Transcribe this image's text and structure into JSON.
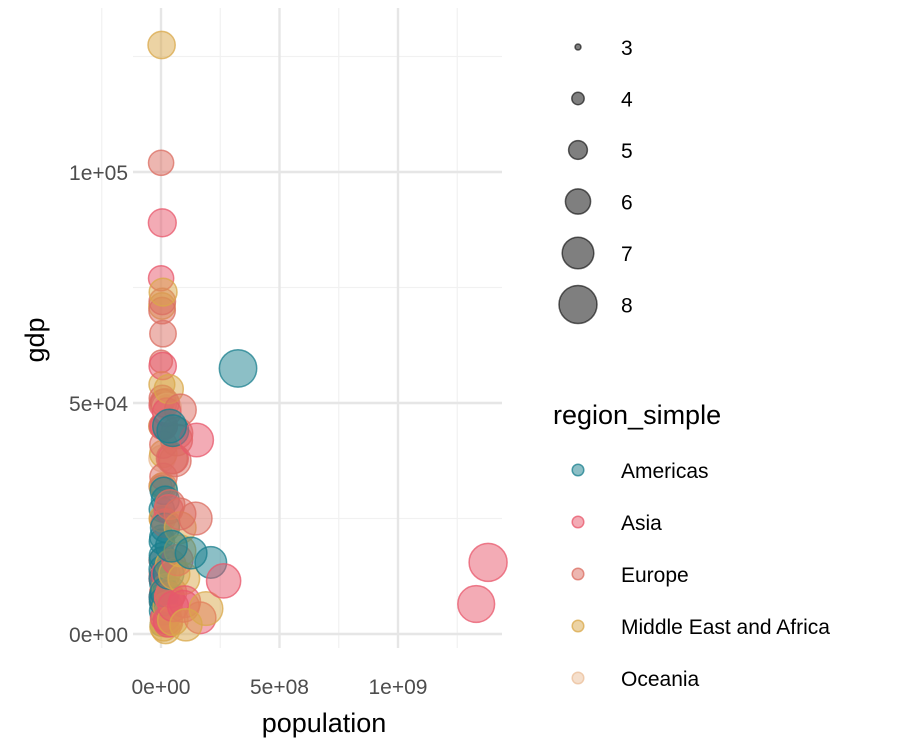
{
  "chart_data": {
    "type": "scatter",
    "xlabel": "population",
    "ylabel": "gdp",
    "xlim": [
      -30000000,
      1440000000
    ],
    "ylim": [
      -5000000,
      1298000000
    ],
    "ylim_note": "",
    "x_ticks": [
      {
        "value": 0,
        "label": "0e+00"
      },
      {
        "value": 500000000,
        "label": "5e+08"
      },
      {
        "value": 1000000000,
        "label": "1e+09"
      }
    ],
    "y_ticks": [
      {
        "value": 0,
        "label": "0e+00"
      },
      {
        "value": 50000,
        "label": "5e+04"
      },
      {
        "value": 100000,
        "label": "1e+05"
      }
    ],
    "y_range": [
      -3000,
      129500
    ],
    "grid": true,
    "size_legend": {
      "title": "",
      "entries": [
        {
          "label": "3",
          "size": 3
        },
        {
          "label": "4",
          "size": 4
        },
        {
          "label": "5",
          "size": 5
        },
        {
          "label": "6",
          "size": 6
        },
        {
          "label": "7",
          "size": 7
        },
        {
          "label": "8",
          "size": 8
        }
      ]
    },
    "color_legend": {
      "title": "region_simple",
      "entries": [
        {
          "label": "Americas",
          "color": "#1a7f8e"
        },
        {
          "label": "Asia",
          "color": "#e8576b"
        },
        {
          "label": "Europe",
          "color": "#db6e62"
        },
        {
          "label": "Middle East and Africa",
          "color": "#d9a84a"
        },
        {
          "label": "Oceania",
          "color": "#ebbf9a"
        }
      ]
    },
    "series": [
      {
        "name": "Americas",
        "points": [
          [
            325000000,
            57500,
            7.9
          ],
          [
            210000000,
            15500,
            7.0
          ],
          [
            127000000,
            17500,
            7.0
          ],
          [
            50000000,
            44000,
            7.0
          ],
          [
            36000000,
            45000,
            7.3
          ],
          [
            44000000,
            19000,
            7.0
          ],
          [
            32000000,
            13000,
            6.8
          ],
          [
            17000000,
            23000,
            6.6
          ],
          [
            11000000,
            7000,
            6.5
          ],
          [
            9000000,
            8000,
            6.4
          ],
          [
            6000000,
            12000,
            6.2
          ],
          [
            4000000,
            20000,
            6.0
          ],
          [
            3000000,
            21000,
            5.8
          ],
          [
            18000000,
            29000,
            6.4
          ],
          [
            12000000,
            31000,
            6.3
          ],
          [
            3500000,
            27000,
            6.0
          ],
          [
            7000000,
            14000,
            6.3
          ],
          [
            10000000,
            5000,
            6.4
          ],
          [
            16000000,
            9000,
            6.6
          ],
          [
            5000000,
            17000,
            6.1
          ],
          [
            2000000,
            2000,
            5.6
          ],
          [
            400000,
            32000,
            5.4
          ],
          [
            3000000,
            11000,
            5.8
          ],
          [
            6500000,
            16000,
            6.2
          ]
        ]
      },
      {
        "name": "Asia",
        "points": [
          [
            1380000000,
            15500,
            8.0
          ],
          [
            1330000000,
            6500,
            7.8
          ],
          [
            264000000,
            11500,
            7.4
          ],
          [
            150000000,
            42000,
            7.3
          ],
          [
            165000000,
            3500,
            7.0
          ],
          [
            100000000,
            7000,
            7.0
          ],
          [
            95000000,
            6000,
            7.0
          ],
          [
            69000000,
            16000,
            6.9
          ],
          [
            51000000,
            38000,
            6.8
          ],
          [
            52000000,
            6000,
            6.8
          ],
          [
            32000000,
            27000,
            6.6
          ],
          [
            30000000,
            2500,
            6.6
          ],
          [
            28000000,
            3000,
            6.6
          ],
          [
            24000000,
            48000,
            6.5
          ],
          [
            7000000,
            58000,
            6.3
          ],
          [
            5600000,
            89000,
            6.4
          ],
          [
            400000,
            77000,
            6.0
          ],
          [
            500000,
            49500,
            5.8
          ],
          [
            700000,
            8000,
            5.8
          ],
          [
            16000000,
            3500,
            6.5
          ],
          [
            35000000,
            8000,
            6.7
          ],
          [
            20000000,
            13000,
            6.5
          ],
          [
            3000000,
            12000,
            6.0
          ],
          [
            12000000,
            45000,
            6.3
          ]
        ]
      },
      {
        "name": "Europe",
        "points": [
          [
            82000000,
            48500,
            7.0
          ],
          [
            67000000,
            43500,
            7.0
          ],
          [
            66000000,
            42000,
            7.0
          ],
          [
            60000000,
            37500,
            7.0
          ],
          [
            46000000,
            38000,
            6.9
          ],
          [
            38000000,
            28000,
            6.7
          ],
          [
            146000000,
            25000,
            7.2
          ],
          [
            80000000,
            26000,
            7.0
          ],
          [
            44000000,
            9000,
            6.8
          ],
          [
            19000000,
            24000,
            6.5
          ],
          [
            17000000,
            50000,
            6.5
          ],
          [
            11000000,
            45000,
            6.3
          ],
          [
            10500000,
            34000,
            6.3
          ],
          [
            10000000,
            41000,
            6.3
          ],
          [
            9500000,
            9000,
            6.3
          ],
          [
            9000000,
            50000,
            6.3
          ],
          [
            8500000,
            65000,
            6.2
          ],
          [
            5800000,
            51000,
            6.2
          ],
          [
            5500000,
            45000,
            6.2
          ],
          [
            5300000,
            72000,
            6.2
          ],
          [
            4800000,
            70000,
            6.2
          ],
          [
            2800000,
            16000,
            6.0
          ],
          [
            600000,
            102000,
            6.0
          ],
          [
            350000,
            59000,
            5.6
          ],
          [
            2000000,
            25000,
            5.8
          ],
          [
            4000000,
            13000,
            6.0
          ],
          [
            7000000,
            7000,
            6.2
          ],
          [
            3000000,
            32000,
            6.0
          ]
        ]
      },
      {
        "name": "Middle East and Africa",
        "points": [
          [
            190000000,
            5500,
            7.3
          ],
          [
            105000000,
            2000,
            7.1
          ],
          [
            96000000,
            12000,
            7.0
          ],
          [
            81000000,
            23000,
            7.0
          ],
          [
            80000000,
            18000,
            7.0
          ],
          [
            56000000,
            13000,
            6.9
          ],
          [
            50000000,
            3000,
            6.8
          ],
          [
            41000000,
            15000,
            6.8
          ],
          [
            36000000,
            8000,
            6.7
          ],
          [
            33000000,
            53000,
            6.6
          ],
          [
            28000000,
            6000,
            6.6
          ],
          [
            25000000,
            4000,
            6.5
          ],
          [
            9000000,
            74000,
            6.4
          ],
          [
            9500000,
            39000,
            6.3
          ],
          [
            8500000,
            32000,
            6.3
          ],
          [
            4200000,
            71000,
            6.2
          ],
          [
            2700000,
            127500,
            6.3
          ],
          [
            1500000,
            45000,
            6.0
          ],
          [
            4000000,
            54000,
            6.1
          ],
          [
            6000000,
            25000,
            6.2
          ],
          [
            15000000,
            2500,
            6.5
          ],
          [
            20000000,
            1000,
            6.5
          ],
          [
            12000000,
            1500,
            6.4
          ],
          [
            22000000,
            10000,
            6.5
          ]
        ]
      },
      {
        "name": "Oceania",
        "points": [
          [
            25000000,
            49000,
            6.5
          ],
          [
            4800000,
            38000,
            6.2
          ],
          [
            8000000,
            3500,
            6.0
          ],
          [
            900000,
            9000,
            5.5
          ]
        ]
      }
    ]
  }
}
